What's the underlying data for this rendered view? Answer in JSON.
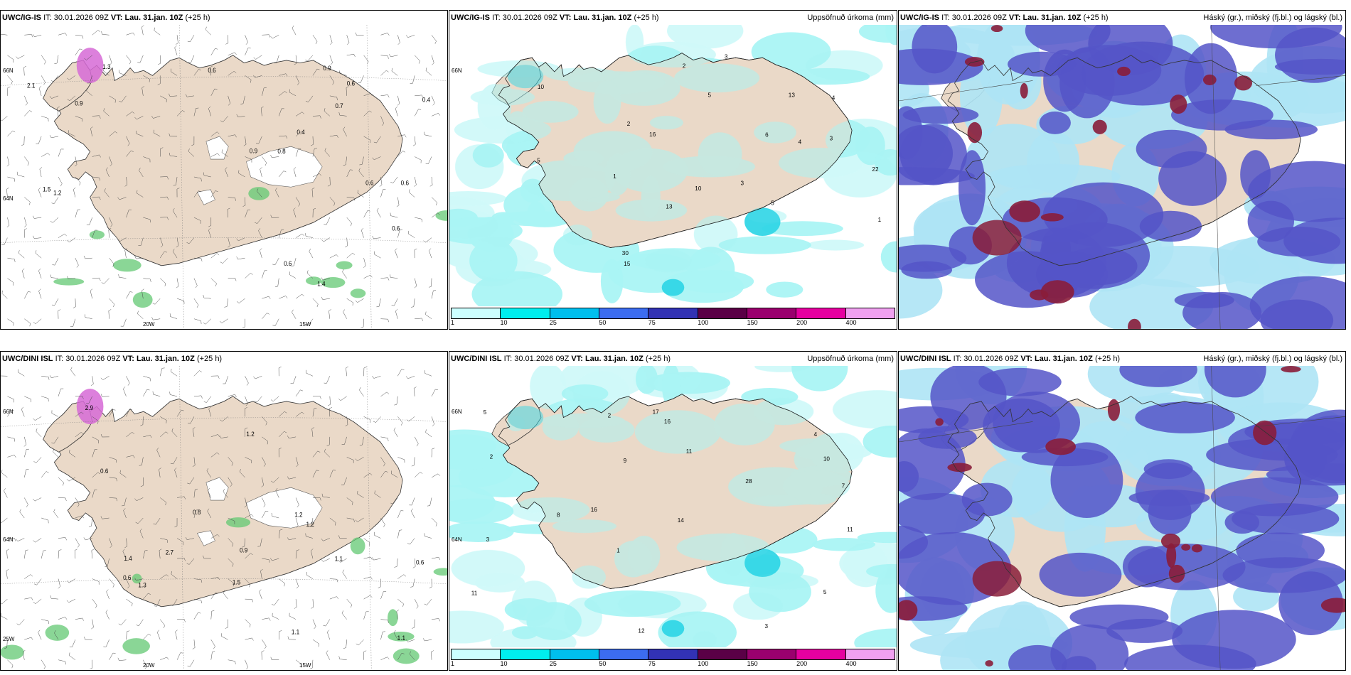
{
  "colors": {
    "land": "#ead9c8",
    "sea": "#ffffff",
    "precip_light": "#aaf4f4",
    "precip_mid": "#33d6e6",
    "cloud_low": "#5555c8",
    "cloud_high": "#8a1d3a",
    "cloud_mid": "#aee4f5",
    "snow_green": "#63c873",
    "ice_pink": "#d66ad6"
  },
  "rows": [
    {
      "model": "UWC/IG-IS",
      "panels": [
        {
          "type": "wind",
          "model": "UWC/IG-IS",
          "it_label": "IT:",
          "it": "30.01.2026 09Z",
          "vt_label": "VT:",
          "vt": "Lau. 31.jan. 10Z",
          "lead": "(+25 h)",
          "title_right": "",
          "axis_labels": [
            "66N",
            "64N",
            "20W",
            "15W"
          ],
          "values": [
            "0.4",
            "0.6",
            "0.6",
            "0.8",
            "0.6",
            "0.9",
            "0.6",
            "0.4",
            "1.3",
            "0.6",
            "0.9",
            "1.5",
            "0.7",
            "1.4",
            "0.6",
            "2.1",
            "1.2",
            "0.9"
          ]
        },
        {
          "type": "precip",
          "model": "UWC/IG-IS",
          "it_label": "IT:",
          "it": "30.01.2026 09Z",
          "vt_label": "VT:",
          "vt": "Lau. 31.jan. 10Z",
          "lead": "(+25 h)",
          "title_right": "Uppsöfnuð úrkoma (mm)",
          "axis_labels": [
            "66N"
          ],
          "values": [
            "1",
            "5",
            "4",
            "3",
            "5",
            "13",
            "3",
            "3",
            "5",
            "4",
            "2",
            "22",
            "15",
            "16",
            "10",
            "6",
            "30",
            "13",
            "10",
            "2",
            "1"
          ]
        },
        {
          "type": "cloud",
          "model": "UWC/IG-IS",
          "it_label": "IT:",
          "it": "30.01.2026 09Z",
          "vt_label": "VT:",
          "vt": "Lau. 31.jan. 10Z",
          "lead": "(+25 h)",
          "title_right": "Háský (gr.), miðský (fj.bl.) og lágský (bl.)",
          "axis_labels": [],
          "values": []
        }
      ]
    },
    {
      "model": "UWC/DINI ISL",
      "panels": [
        {
          "type": "wind",
          "model": "UWC/DINI ISL",
          "it_label": "IT:",
          "it": "30.01.2026 09Z",
          "vt_label": "VT:",
          "vt": "Lau. 31.jan. 10Z",
          "lead": "(+25 h)",
          "title_right": "",
          "axis_labels": [
            "66N",
            "64N",
            "25W",
            "20W",
            "15W"
          ],
          "values": [
            "1.1",
            "0.6",
            "0.8",
            "0.9",
            "0.6",
            "1.1",
            "1.3",
            "0.6",
            "1.5",
            "1.4",
            "1.2",
            "1.2",
            "1.1",
            "1.2",
            "2.7",
            "2.9"
          ]
        },
        {
          "type": "precip",
          "model": "UWC/DINI ISL",
          "it_label": "IT:",
          "it": "30.01.2026 09Z",
          "vt_label": "VT:",
          "vt": "Lau. 31.jan. 10Z",
          "lead": "(+25 h)",
          "title_right": "Uppsöfnuð úrkoma (mm)",
          "axis_labels": [
            "66N",
            "64N"
          ],
          "values": [
            "2",
            "3",
            "14",
            "11",
            "7",
            "4",
            "3",
            "5",
            "2",
            "8",
            "11",
            "16",
            "9",
            "12",
            "17",
            "10",
            "28",
            "16",
            "11",
            "5",
            "1"
          ]
        },
        {
          "type": "cloud",
          "model": "UWC/DINI ISL",
          "it_label": "IT:",
          "it": "30.01.2026 09Z",
          "vt_label": "VT:",
          "vt": "Lau. 31.jan. 10Z",
          "lead": "(+25 h)",
          "title_right": "Háský (gr.), miðský (fj.bl.) og lágský (bl.)",
          "axis_labels": [],
          "values": []
        }
      ]
    }
  ],
  "colorbar": {
    "labels": [
      "1",
      "10",
      "25",
      "50",
      "75",
      "100",
      "150",
      "200",
      "400"
    ],
    "colors": [
      "#ccffff",
      "#00eeee",
      "#00bfee",
      "#3c6cf0",
      "#3232b4",
      "#5a0046",
      "#9a006e",
      "#e600a0",
      "#f0a0f0"
    ]
  }
}
